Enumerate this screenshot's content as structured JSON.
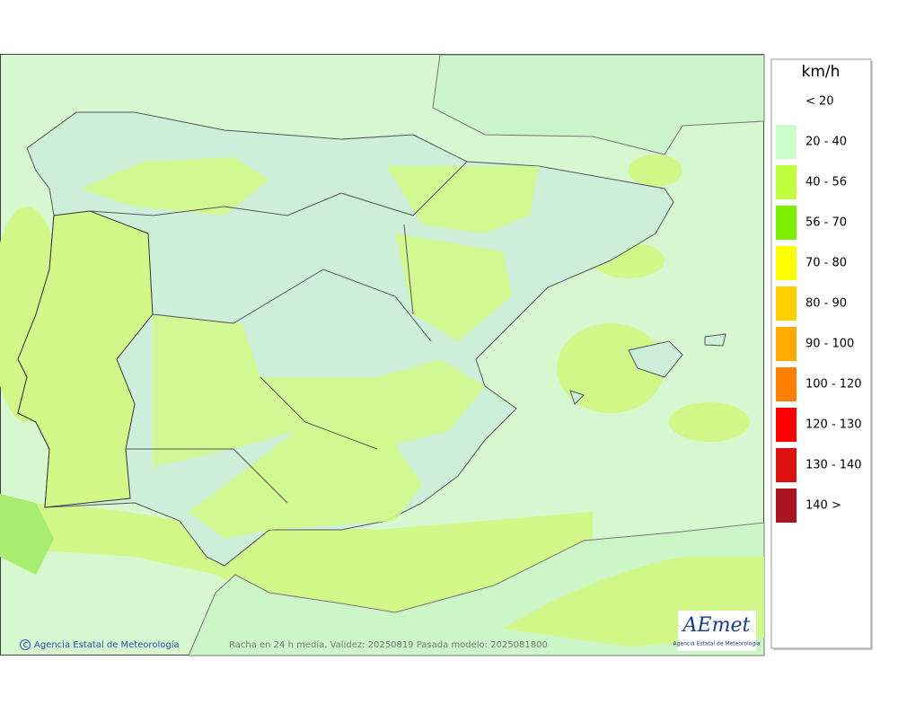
{
  "legend": {
    "title": "km/h",
    "items": [
      {
        "label": "< 20",
        "color": "#ffffff"
      },
      {
        "label": "20 - 40",
        "color": "#ccffcc"
      },
      {
        "label": "40 - 56",
        "color": "#c0ff40"
      },
      {
        "label": "56 - 70",
        "color": "#7cf000"
      },
      {
        "label": "70 - 80",
        "color": "#ffff00"
      },
      {
        "label": "80 - 90",
        "color": "#ffd000"
      },
      {
        "label": "90 - 100",
        "color": "#ffaa00"
      },
      {
        "label": "100 - 120",
        "color": "#ff8000"
      },
      {
        "label": "120 - 130",
        "color": "#ff0000"
      },
      {
        "label": "130 - 140",
        "color": "#dd1010"
      },
      {
        "label": "140 >",
        "color": "#aa1520"
      }
    ]
  },
  "footer": {
    "credit": "Agencia Estatal de Meteorología",
    "caption": "Racha en 24 h media. Validez: 20250819 Pasada modelo: 2025081800"
  },
  "logo": {
    "name": "AEmet",
    "subtitle": "Agencia Estatal de Meteorología"
  }
}
